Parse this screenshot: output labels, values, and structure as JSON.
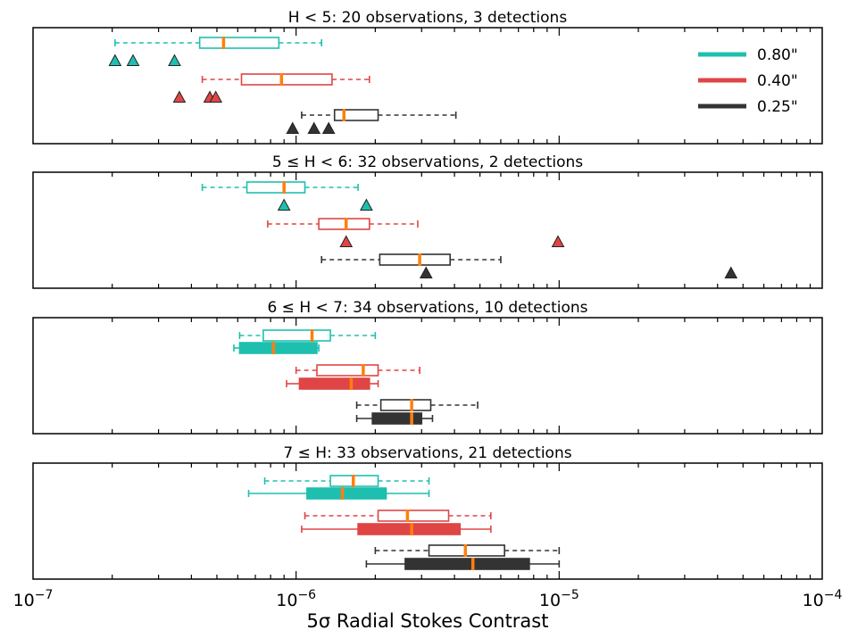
{
  "chart_data": {
    "type": "boxplot",
    "xlabel": "5σ Radial Stokes Contrast",
    "xscale": "log",
    "xlim": [
      1e-07,
      0.0001
    ],
    "xticks": [
      {
        "base": "10",
        "exp": "−7"
      },
      {
        "base": "10",
        "exp": "−6"
      },
      {
        "base": "10",
        "exp": "−5"
      },
      {
        "base": "10",
        "exp": "−4"
      }
    ],
    "legend": {
      "placement": "top-right",
      "entries": [
        {
          "label": "0.80\"",
          "color": "#1fbfb0"
        },
        {
          "label": "0.40\"",
          "color": "#e04545"
        },
        {
          "label": "0.25\"",
          "color": "#333333"
        }
      ]
    },
    "panels": [
      {
        "title": "H < 5: 20 observations, 3 detections",
        "groups": [
          {
            "sep": "0.80\"",
            "color": "#1fbfb0",
            "box_style": "dashed",
            "whislo": 2.05e-07,
            "q1": 4.3e-07,
            "med": 5.3e-07,
            "q3": 8.6e-07,
            "whishi": 1.25e-06,
            "detections": [
              2.05e-07,
              2.4e-07,
              3.45e-07
            ]
          },
          {
            "sep": "0.40\"",
            "color": "#e04545",
            "box_style": "dashed",
            "whislo": 4.4e-07,
            "q1": 6.2e-07,
            "med": 8.8e-07,
            "q3": 1.37e-06,
            "whishi": 1.9e-06,
            "detections": [
              3.6e-07,
              4.7e-07,
              4.95e-07
            ]
          },
          {
            "sep": "0.25\"",
            "color": "#333333",
            "box_style": "dashed",
            "whislo": 1.05e-06,
            "q1": 1.4e-06,
            "med": 1.52e-06,
            "q3": 2.05e-06,
            "whishi": 4.05e-06,
            "detections": [
              9.7e-07,
              1.17e-06,
              1.33e-06
            ]
          }
        ]
      },
      {
        "title": "5 ≤ H < 6: 32 observations, 2 detections",
        "groups": [
          {
            "sep": "0.80\"",
            "color": "#1fbfb0",
            "box_style": "dashed",
            "whislo": 4.4e-07,
            "q1": 6.5e-07,
            "med": 9e-07,
            "q3": 1.08e-06,
            "whishi": 1.72e-06,
            "detections": [
              9e-07,
              1.85e-06
            ]
          },
          {
            "sep": "0.40\"",
            "color": "#e04545",
            "box_style": "dashed",
            "whislo": 7.8e-07,
            "q1": 1.22e-06,
            "med": 1.55e-06,
            "q3": 1.9e-06,
            "whishi": 2.9e-06,
            "detections": [
              1.55e-06,
              9.9e-06
            ]
          },
          {
            "sep": "0.25\"",
            "color": "#333333",
            "box_style": "dashed",
            "whislo": 1.25e-06,
            "q1": 2.08e-06,
            "med": 2.95e-06,
            "q3": 3.85e-06,
            "whishi": 6e-06,
            "detections": [
              3.12e-06,
              4.5e-05
            ]
          }
        ]
      },
      {
        "title": "6 ≤ H < 7: 34 observations, 10 detections",
        "groups": [
          {
            "sep": "0.80\"",
            "color": "#1fbfb0",
            "box_style": "dashed",
            "whislo": 6.1e-07,
            "q1": 7.5e-07,
            "med": 1.15e-06,
            "q3": 1.35e-06,
            "whishi": 2e-06,
            "detections": []
          },
          {
            "sep": "0.80\"",
            "color": "#1fbfb0",
            "box_style": "filled",
            "whislo": 5.8e-07,
            "q1": 6.1e-07,
            "med": 8.2e-07,
            "q3": 1.2e-06,
            "whishi": 1.22e-06,
            "detections": []
          },
          {
            "sep": "0.40\"",
            "color": "#e04545",
            "box_style": "dashed",
            "whislo": 1e-06,
            "q1": 1.2e-06,
            "med": 1.8e-06,
            "q3": 2.05e-06,
            "whishi": 2.95e-06,
            "detections": []
          },
          {
            "sep": "0.40\"",
            "color": "#e04545",
            "box_style": "filled",
            "whislo": 9.2e-07,
            "q1": 1.03e-06,
            "med": 1.62e-06,
            "q3": 1.9e-06,
            "whishi": 2.05e-06,
            "detections": []
          },
          {
            "sep": "0.25\"",
            "color": "#333333",
            "box_style": "dashed",
            "whislo": 1.7e-06,
            "q1": 2.1e-06,
            "med": 2.75e-06,
            "q3": 3.25e-06,
            "whishi": 4.9e-06,
            "detections": []
          },
          {
            "sep": "0.25\"",
            "color": "#333333",
            "box_style": "filled",
            "whislo": 1.7e-06,
            "q1": 1.95e-06,
            "med": 2.75e-06,
            "q3": 3e-06,
            "whishi": 3.3e-06,
            "detections": []
          }
        ]
      },
      {
        "title": "7 ≤ H: 33 observations, 21 detections",
        "groups": [
          {
            "sep": "0.80\"",
            "color": "#1fbfb0",
            "box_style": "dashed",
            "whislo": 7.6e-07,
            "q1": 1.35e-06,
            "med": 1.65e-06,
            "q3": 2.05e-06,
            "whishi": 3.2e-06,
            "detections": []
          },
          {
            "sep": "0.80\"",
            "color": "#1fbfb0",
            "box_style": "filled",
            "whislo": 6.6e-07,
            "q1": 1.1e-06,
            "med": 1.5e-06,
            "q3": 2.2e-06,
            "whishi": 3.2e-06,
            "detections": []
          },
          {
            "sep": "0.40\"",
            "color": "#e04545",
            "box_style": "dashed",
            "whislo": 1.08e-06,
            "q1": 2.05e-06,
            "med": 2.65e-06,
            "q3": 3.8e-06,
            "whishi": 5.5e-06,
            "detections": []
          },
          {
            "sep": "0.40\"",
            "color": "#e04545",
            "box_style": "filled",
            "whislo": 1.05e-06,
            "q1": 1.72e-06,
            "med": 2.75e-06,
            "q3": 4.2e-06,
            "whishi": 5.5e-06,
            "detections": []
          },
          {
            "sep": "0.25\"",
            "color": "#333333",
            "box_style": "dashed",
            "whislo": 2e-06,
            "q1": 3.2e-06,
            "med": 4.4e-06,
            "q3": 6.2e-06,
            "whishi": 1e-05,
            "detections": []
          },
          {
            "sep": "0.25\"",
            "color": "#333333",
            "box_style": "filled",
            "whislo": 1.85e-06,
            "q1": 2.6e-06,
            "med": 4.7e-06,
            "q3": 7.7e-06,
            "whishi": 1e-05,
            "detections": []
          }
        ]
      }
    ]
  },
  "colors": {
    "median": "#ff7f0e",
    "axes": "#000000"
  }
}
